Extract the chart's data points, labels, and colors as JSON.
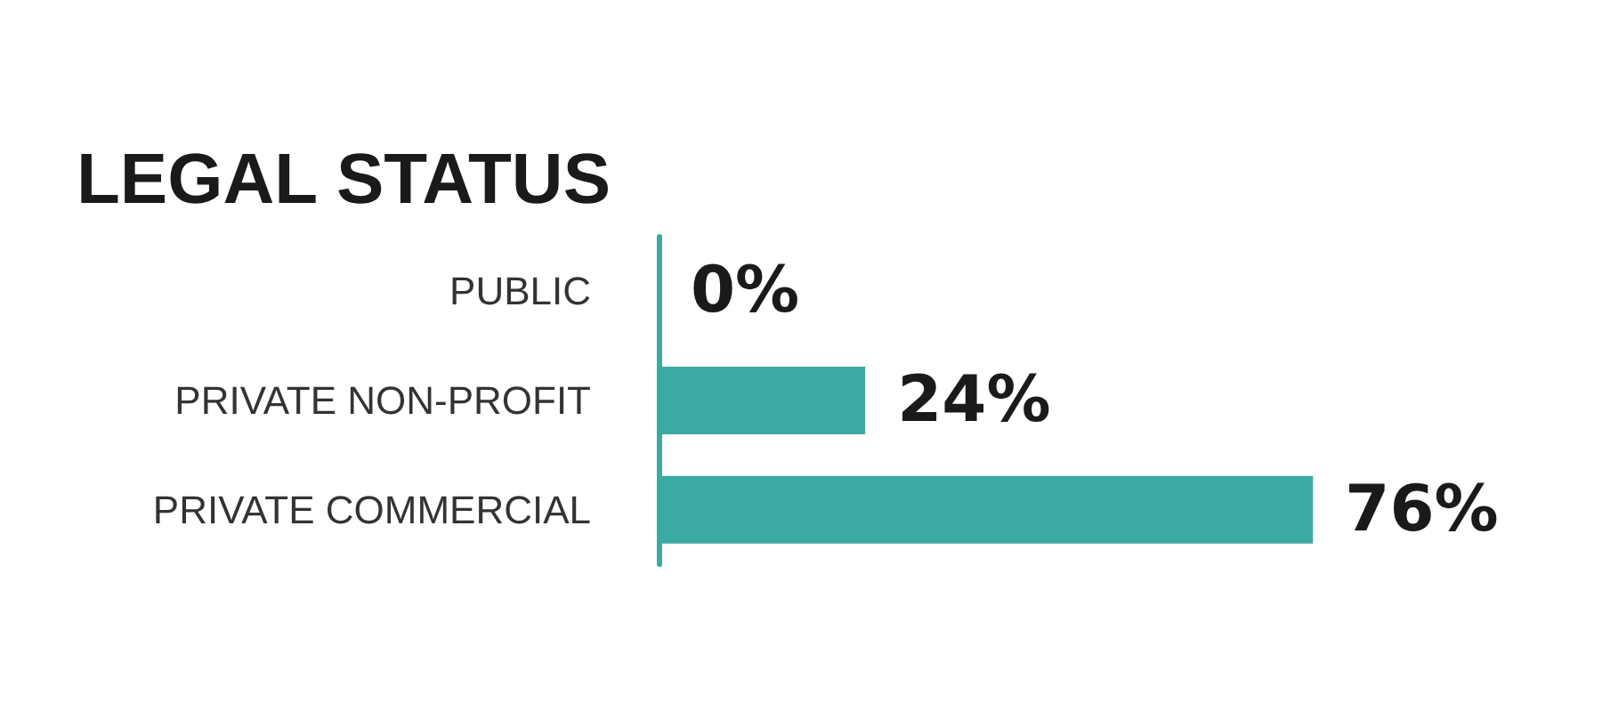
{
  "chart_data": {
    "type": "bar",
    "orientation": "horizontal",
    "title": "LEGAL STATUS",
    "categories": [
      "PUBLIC",
      "PRIVATE NON-PROFIT",
      "PRIVATE COMMERCIAL"
    ],
    "values": [
      0,
      24,
      76
    ],
    "value_labels": [
      "0%",
      "24%",
      "76%"
    ],
    "color": "#3aaaa3"
  }
}
